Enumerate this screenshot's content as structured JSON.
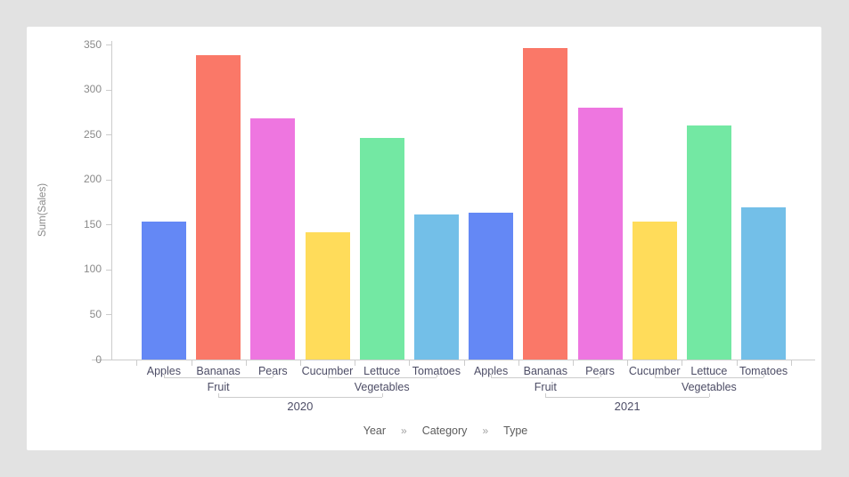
{
  "chart_data": {
    "type": "bar",
    "title": "",
    "ylabel": "Sum(Sales)",
    "ylim": [
      0,
      350
    ],
    "y_ticks": [
      0,
      50,
      100,
      150,
      200,
      250,
      300,
      350
    ],
    "grid": false,
    "legend_position": "none",
    "axis_hierarchy": [
      "Year",
      "Category",
      "Type"
    ],
    "groups": [
      {
        "year": "2020",
        "categories": [
          {
            "name": "Fruit",
            "types": [
              "Apples",
              "Bananas",
              "Pears"
            ],
            "values": [
              153,
              338,
              268
            ]
          },
          {
            "name": "Vegetables",
            "types": [
              "Cucumber",
              "Lettuce",
              "Tomatoes"
            ],
            "values": [
              141,
              246,
              161
            ]
          }
        ]
      },
      {
        "year": "2021",
        "categories": [
          {
            "name": "Fruit",
            "types": [
              "Apples",
              "Bananas",
              "Pears"
            ],
            "values": [
              163,
              346,
              280
            ]
          },
          {
            "name": "Vegetables",
            "types": [
              "Cucumber",
              "Lettuce",
              "Tomatoes"
            ],
            "values": [
              153,
              260,
              169
            ]
          }
        ]
      }
    ],
    "bar_colors": [
      "#6488f5",
      "#fa7868",
      "#ee76e0",
      "#ffdc5a",
      "#73e8a3",
      "#73bfe8"
    ]
  },
  "breadcrumb": {
    "levels": [
      "Year",
      "Category",
      "Type"
    ],
    "separator": "»"
  },
  "colors": {
    "page_background": "#e2e2e2",
    "card_background": "#ffffff",
    "axis_line": "#cccccc",
    "y_tick_text": "#8a8a8a",
    "x_label_text": "#4d4d66",
    "breadcrumb_text": "#5c5c5c",
    "breadcrumb_separator": "#a0a0a0"
  }
}
